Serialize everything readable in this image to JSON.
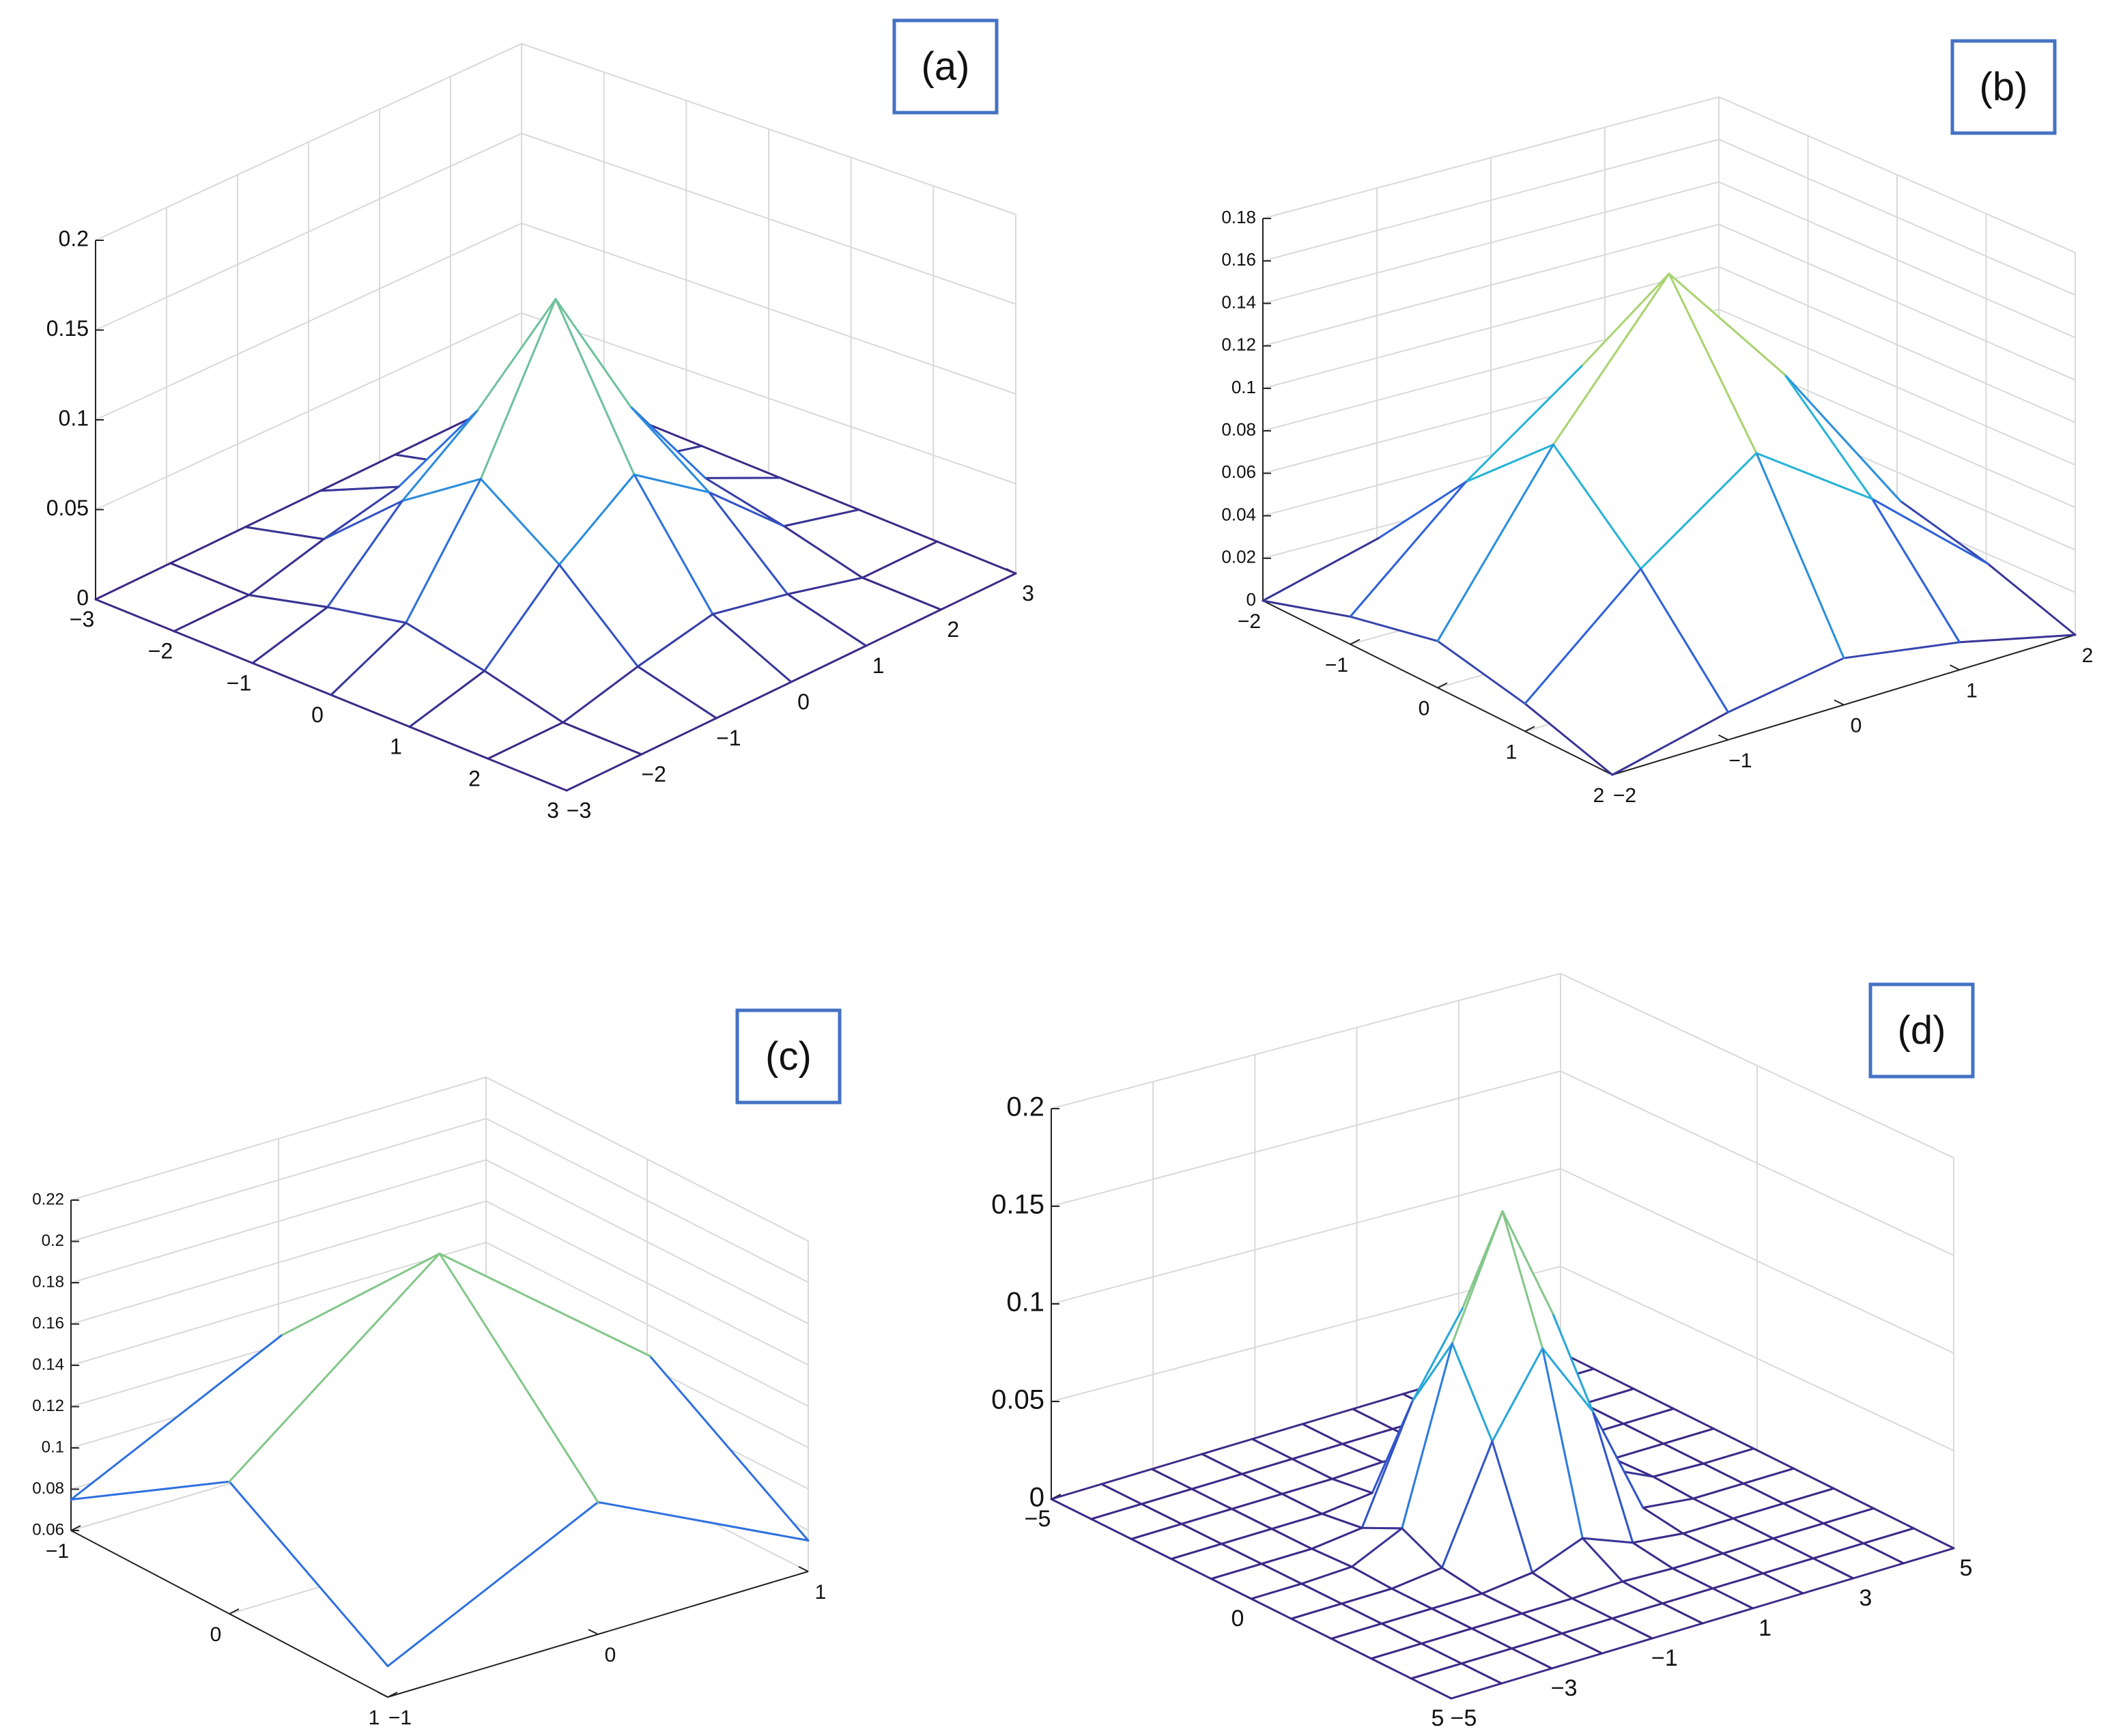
{
  "figure": {
    "background": "#ffffff"
  },
  "colors": {
    "grid": "#d9d9d9",
    "axis": "#222222",
    "label_box": "#4472c4",
    "colormap": [
      "#3b2a87",
      "#2f66e0",
      "#27b3d8",
      "#86c78a",
      "#f7ee3a"
    ]
  },
  "chart_data": [
    {
      "panel": "(a)",
      "type": "surface",
      "x": [
        -3,
        -2,
        -1,
        0,
        1,
        2,
        3
      ],
      "y": [
        -3,
        -2,
        -1,
        0,
        1,
        2,
        3
      ],
      "x_ticks": [
        "−3",
        "−2",
        "−1",
        "0",
        "1",
        "2",
        "3"
      ],
      "y_ticks": [
        "−3",
        "−2",
        "−1",
        "0",
        "1",
        "2",
        "3"
      ],
      "z_ticks": [
        "0",
        "0.05",
        "0.1",
        "0.15",
        "0.2"
      ],
      "zlim": [
        0,
        0.2
      ],
      "z": [
        [
          0.0,
          0.0,
          0.0,
          0.0,
          0.0,
          0.0,
          0.0
        ],
        [
          0.0,
          0.0,
          0.011,
          0.02,
          0.011,
          0.0,
          0.0
        ],
        [
          0.0,
          0.011,
          0.05,
          0.08,
          0.05,
          0.011,
          0.0
        ],
        [
          0.0,
          0.02,
          0.08,
          0.16,
          0.08,
          0.02,
          0.0
        ],
        [
          0.0,
          0.011,
          0.05,
          0.08,
          0.05,
          0.011,
          0.0
        ],
        [
          0.0,
          0.0,
          0.011,
          0.02,
          0.011,
          0.0,
          0.0
        ],
        [
          0.0,
          0.0,
          0.0,
          0.0,
          0.0,
          0.0,
          0.0
        ]
      ],
      "grid": true
    },
    {
      "panel": "(b)",
      "type": "surface",
      "x": [
        -2,
        -1,
        0,
        1,
        2
      ],
      "y": [
        -2,
        -1,
        0,
        1,
        2
      ],
      "x_ticks": [
        "−2",
        "−1",
        "0",
        "1",
        "2"
      ],
      "y_ticks": [
        "−2",
        "−1",
        "0",
        "1",
        "2"
      ],
      "z_ticks": [
        "0",
        "0.02",
        "0.04",
        "0.06",
        "0.08",
        "0.1",
        "0.12",
        "0.14",
        "0.16",
        "0.18"
      ],
      "zlim": [
        0,
        0.18
      ],
      "z": [
        [
          0.0,
          0.013,
          0.022,
          0.013,
          0.0
        ],
        [
          0.013,
          0.06,
          0.098,
          0.06,
          0.013
        ],
        [
          0.022,
          0.098,
          0.162,
          0.098,
          0.022
        ],
        [
          0.013,
          0.06,
          0.098,
          0.06,
          0.013
        ],
        [
          0.0,
          0.013,
          0.022,
          0.013,
          0.0
        ]
      ],
      "grid": true
    },
    {
      "panel": "(c)",
      "type": "surface",
      "x": [
        -1,
        0,
        1
      ],
      "y": [
        -1,
        0,
        1
      ],
      "x_ticks": [
        "−1",
        "0",
        "1"
      ],
      "y_ticks": [
        "−1",
        "0",
        "1"
      ],
      "z_ticks": [
        "0.06",
        "0.08",
        "0.1",
        "0.12",
        "0.14",
        "0.16",
        "0.18",
        "0.2",
        "0.22"
      ],
      "zlim": [
        0.06,
        0.22
      ],
      "z": [
        [
          0.075,
          0.124,
          0.075
        ],
        [
          0.124,
          0.204,
          0.124
        ],
        [
          0.075,
          0.124,
          0.075
        ]
      ],
      "grid": true
    },
    {
      "panel": "(d)",
      "type": "surface",
      "x": [
        -5,
        -4,
        -3,
        -2,
        -1,
        0,
        1,
        2,
        3,
        4,
        5
      ],
      "y": [
        -5,
        -4,
        -3,
        -2,
        -1,
        0,
        1,
        2,
        3,
        4,
        5
      ],
      "x_ticks": [
        "−5",
        "0",
        "5"
      ],
      "x_tick_values": [
        -5,
        0,
        5
      ],
      "y_ticks": [
        "−5",
        "−3",
        "−1",
        "1",
        "3",
        "5"
      ],
      "y_tick_values": [
        -5,
        -3,
        -1,
        1,
        3,
        5
      ],
      "z_ticks": [
        "0",
        "0.05",
        "0.1",
        "0.15",
        "0.2"
      ],
      "zlim": [
        0,
        0.2
      ],
      "z": [
        [
          0,
          0,
          0,
          0,
          0,
          0,
          0,
          0,
          0,
          0,
          0
        ],
        [
          0,
          0,
          0,
          0,
          0,
          0,
          0,
          0,
          0,
          0,
          0
        ],
        [
          0,
          0,
          0,
          0,
          0,
          0.001,
          0,
          0,
          0,
          0,
          0
        ],
        [
          0,
          0,
          0,
          0,
          0.003,
          0.013,
          0.003,
          0,
          0,
          0,
          0
        ],
        [
          0,
          0,
          0,
          0.003,
          0.06,
          0.1,
          0.06,
          0.003,
          0,
          0,
          0
        ],
        [
          0,
          0,
          0.001,
          0.013,
          0.1,
          0.16,
          0.1,
          0.013,
          0.001,
          0,
          0
        ],
        [
          0,
          0,
          0,
          0.003,
          0.06,
          0.1,
          0.06,
          0.003,
          0,
          0,
          0
        ],
        [
          0,
          0,
          0,
          0,
          0.003,
          0.013,
          0.003,
          0,
          0,
          0,
          0
        ],
        [
          0,
          0,
          0,
          0,
          0,
          0.001,
          0,
          0,
          0,
          0,
          0
        ],
        [
          0,
          0,
          0,
          0,
          0,
          0,
          0,
          0,
          0,
          0,
          0
        ],
        [
          0,
          0,
          0,
          0,
          0,
          0,
          0,
          0,
          0,
          0,
          0
        ]
      ],
      "grid": true
    }
  ]
}
